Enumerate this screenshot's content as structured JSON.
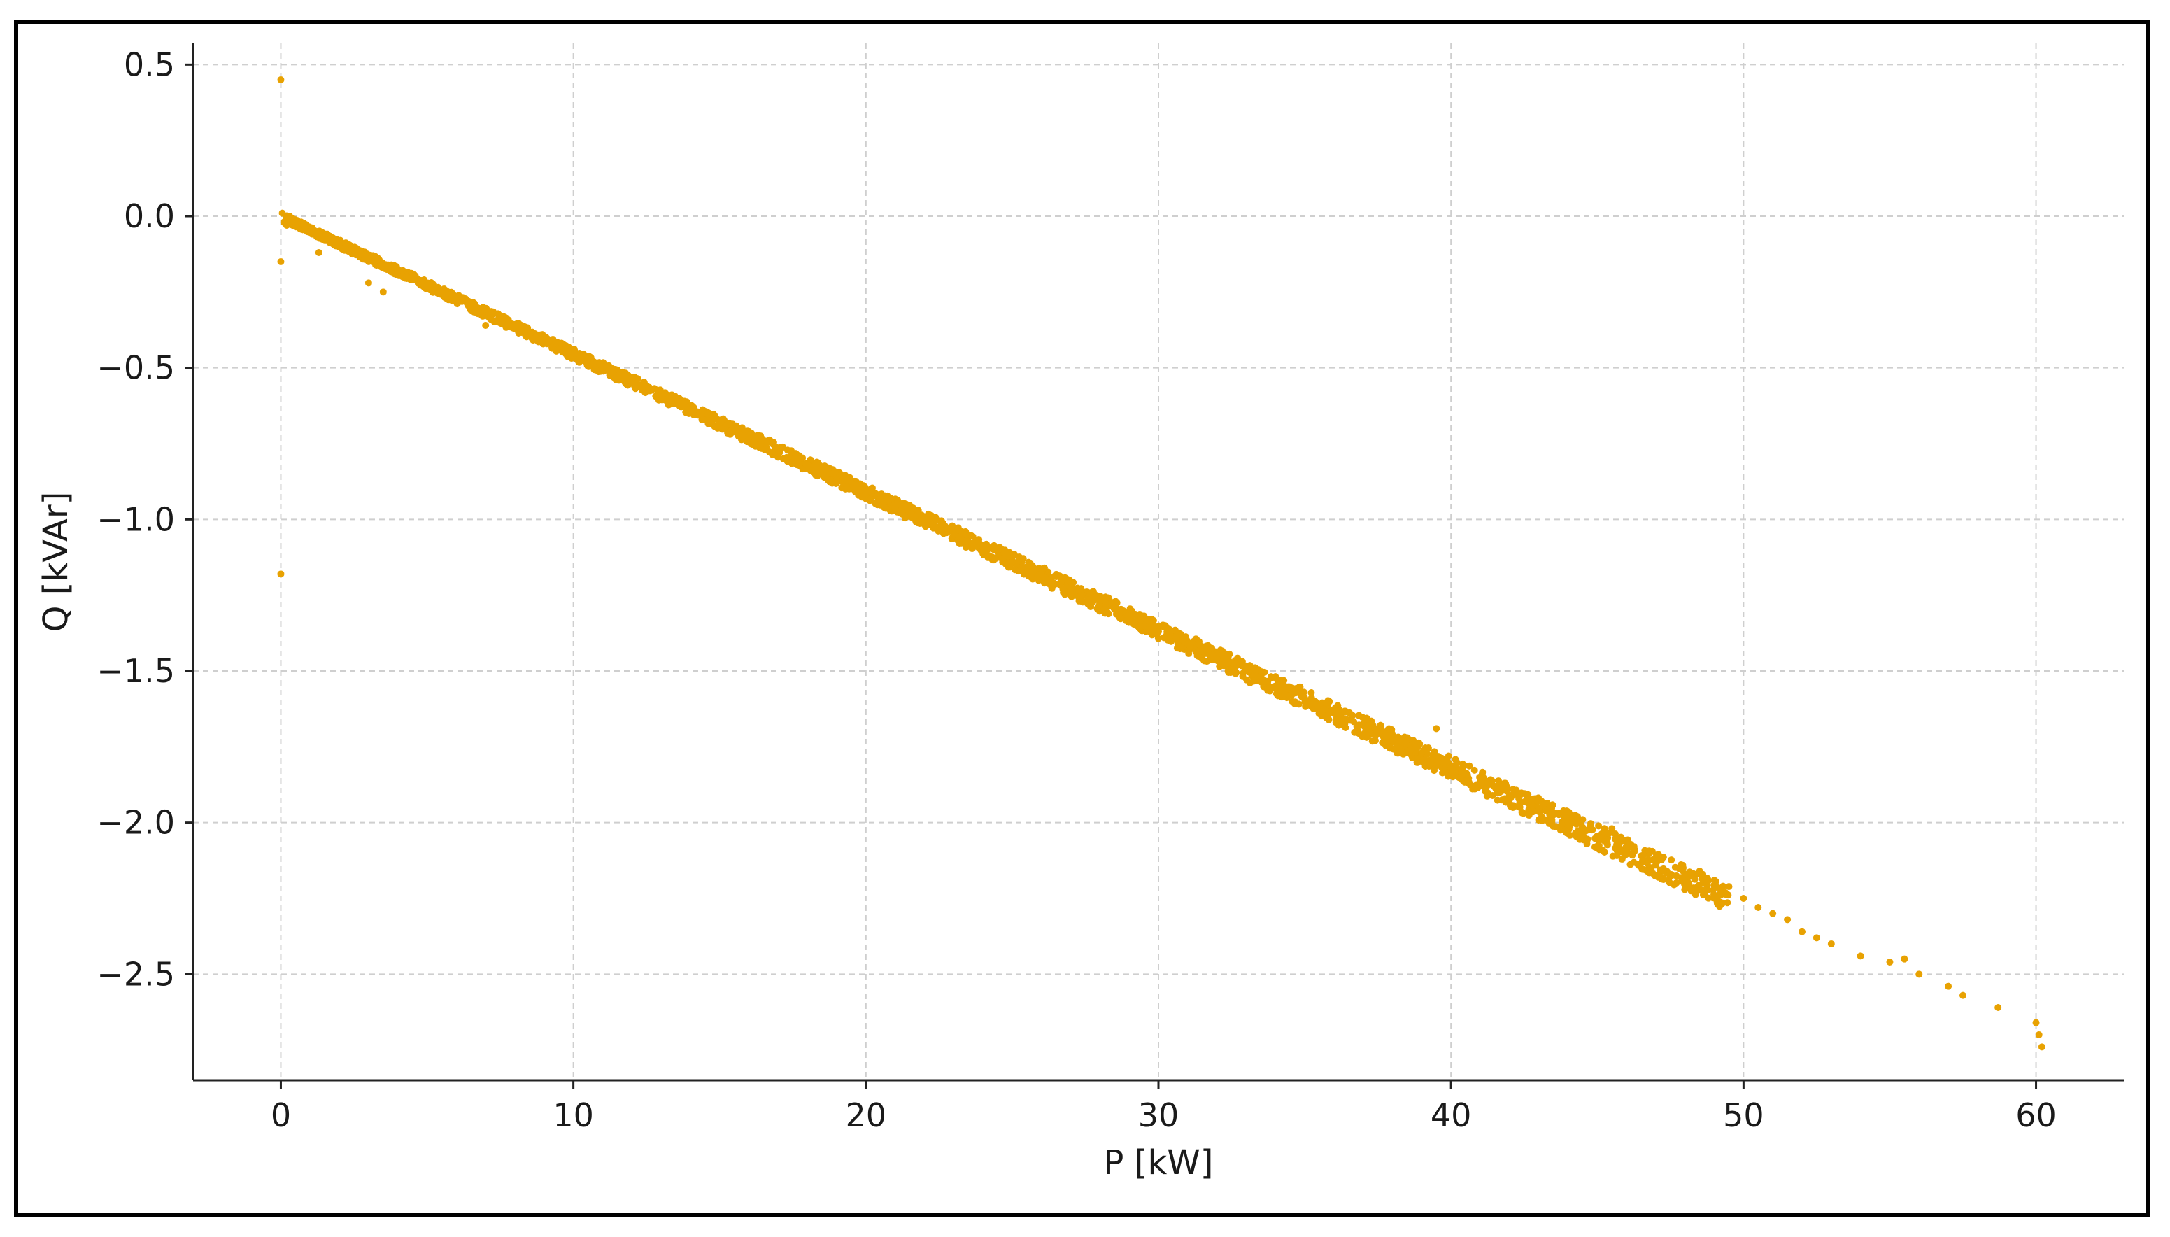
{
  "colors": {
    "marker": "#E8A202",
    "grid": "#cfcfcf",
    "axis": "#222222",
    "frame": "#000000"
  },
  "chart_data": {
    "type": "scatter",
    "title": "",
    "xlabel": "P [kW]",
    "ylabel": "Q [kVAr]",
    "xlim": [
      -3,
      63
    ],
    "ylim": [
      -2.85,
      0.57
    ],
    "xticks": [
      0,
      10,
      20,
      30,
      40,
      50,
      60
    ],
    "yticks": [
      0.5,
      0.0,
      -0.5,
      -1.0,
      -1.5,
      -2.0,
      -2.5
    ],
    "xtick_labels": [
      "0",
      "10",
      "20",
      "30",
      "40",
      "50",
      "60"
    ],
    "ytick_labels": [
      "0.5",
      "0.0",
      "−0.5",
      "−1.0",
      "−1.5",
      "−2.0",
      "−2.5"
    ],
    "grid": true,
    "series": [
      {
        "color": "#E8A202",
        "trend": {
          "slope": -0.0455,
          "intercept": 0.0
        },
        "points": [
          [
            0.0,
            0.45
          ],
          [
            0.0,
            -1.18
          ],
          [
            0.0,
            -0.15
          ],
          [
            0.05,
            0.01
          ],
          [
            0.1,
            -0.02
          ],
          [
            0.2,
            -0.03
          ],
          [
            0.3,
            0.0
          ],
          [
            0.5,
            -0.02
          ],
          [
            1.0,
            -0.05
          ],
          [
            1.3,
            -0.12
          ],
          [
            2.0,
            -0.09
          ],
          [
            2.5,
            -0.11
          ],
          [
            3.0,
            -0.22
          ],
          [
            3.5,
            -0.25
          ],
          [
            4.0,
            -0.18
          ],
          [
            5.0,
            -0.23
          ],
          [
            6.0,
            -0.27
          ],
          [
            6.5,
            -0.29
          ],
          [
            7.0,
            -0.36
          ],
          [
            7.5,
            -0.34
          ],
          [
            8.0,
            -0.36
          ],
          [
            9.0,
            -0.41
          ],
          [
            10.0,
            -0.45
          ],
          [
            11.0,
            -0.5
          ],
          [
            12.0,
            -0.55
          ],
          [
            13.0,
            -0.59
          ],
          [
            14.0,
            -0.64
          ],
          [
            15.0,
            -0.68
          ],
          [
            16.0,
            -0.73
          ],
          [
            17.0,
            -0.77
          ],
          [
            18.0,
            -0.82
          ],
          [
            19.0,
            -0.87
          ],
          [
            20.0,
            -0.91
          ],
          [
            21.0,
            -0.96
          ],
          [
            22.0,
            -1.0
          ],
          [
            23.0,
            -1.05
          ],
          [
            23.2,
            -1.08
          ],
          [
            24.0,
            -1.09
          ],
          [
            25.0,
            -1.14
          ],
          [
            26.0,
            -1.18
          ],
          [
            27.0,
            -1.23
          ],
          [
            28.0,
            -1.27
          ],
          [
            29.0,
            -1.32
          ],
          [
            30.0,
            -1.37
          ],
          [
            31.0,
            -1.41
          ],
          [
            32.0,
            -1.46
          ],
          [
            33.0,
            -1.5
          ],
          [
            34.0,
            -1.55
          ],
          [
            35.0,
            -1.59
          ],
          [
            36.0,
            -1.64
          ],
          [
            37.0,
            -1.68
          ],
          [
            38.0,
            -1.73
          ],
          [
            38.5,
            -1.72
          ],
          [
            39.0,
            -1.77
          ],
          [
            39.5,
            -1.69
          ],
          [
            40.0,
            -1.82
          ],
          [
            41.0,
            -1.86
          ],
          [
            42.0,
            -1.91
          ],
          [
            43.0,
            -1.95
          ],
          [
            44.0,
            -2.0
          ],
          [
            44.5,
            -1.99
          ],
          [
            45.0,
            -2.05
          ],
          [
            45.5,
            -2.02
          ],
          [
            46.0,
            -2.08
          ],
          [
            46.5,
            -2.11
          ],
          [
            47.0,
            -2.14
          ],
          [
            48.0,
            -2.17
          ],
          [
            48.5,
            -2.16
          ],
          [
            49.0,
            -2.19
          ],
          [
            49.3,
            -2.21
          ],
          [
            50.0,
            -2.25
          ],
          [
            50.5,
            -2.28
          ],
          [
            51.0,
            -2.3
          ],
          [
            51.5,
            -2.32
          ],
          [
            52.0,
            -2.36
          ],
          [
            52.5,
            -2.38
          ],
          [
            53.0,
            -2.4
          ],
          [
            54.0,
            -2.44
          ],
          [
            55.0,
            -2.46
          ],
          [
            55.5,
            -2.45
          ],
          [
            56.0,
            -2.5
          ],
          [
            57.0,
            -2.54
          ],
          [
            57.5,
            -2.57
          ],
          [
            58.7,
            -2.61
          ],
          [
            60.0,
            -2.66
          ],
          [
            60.1,
            -2.7
          ],
          [
            60.2,
            -2.74
          ]
        ]
      }
    ]
  }
}
